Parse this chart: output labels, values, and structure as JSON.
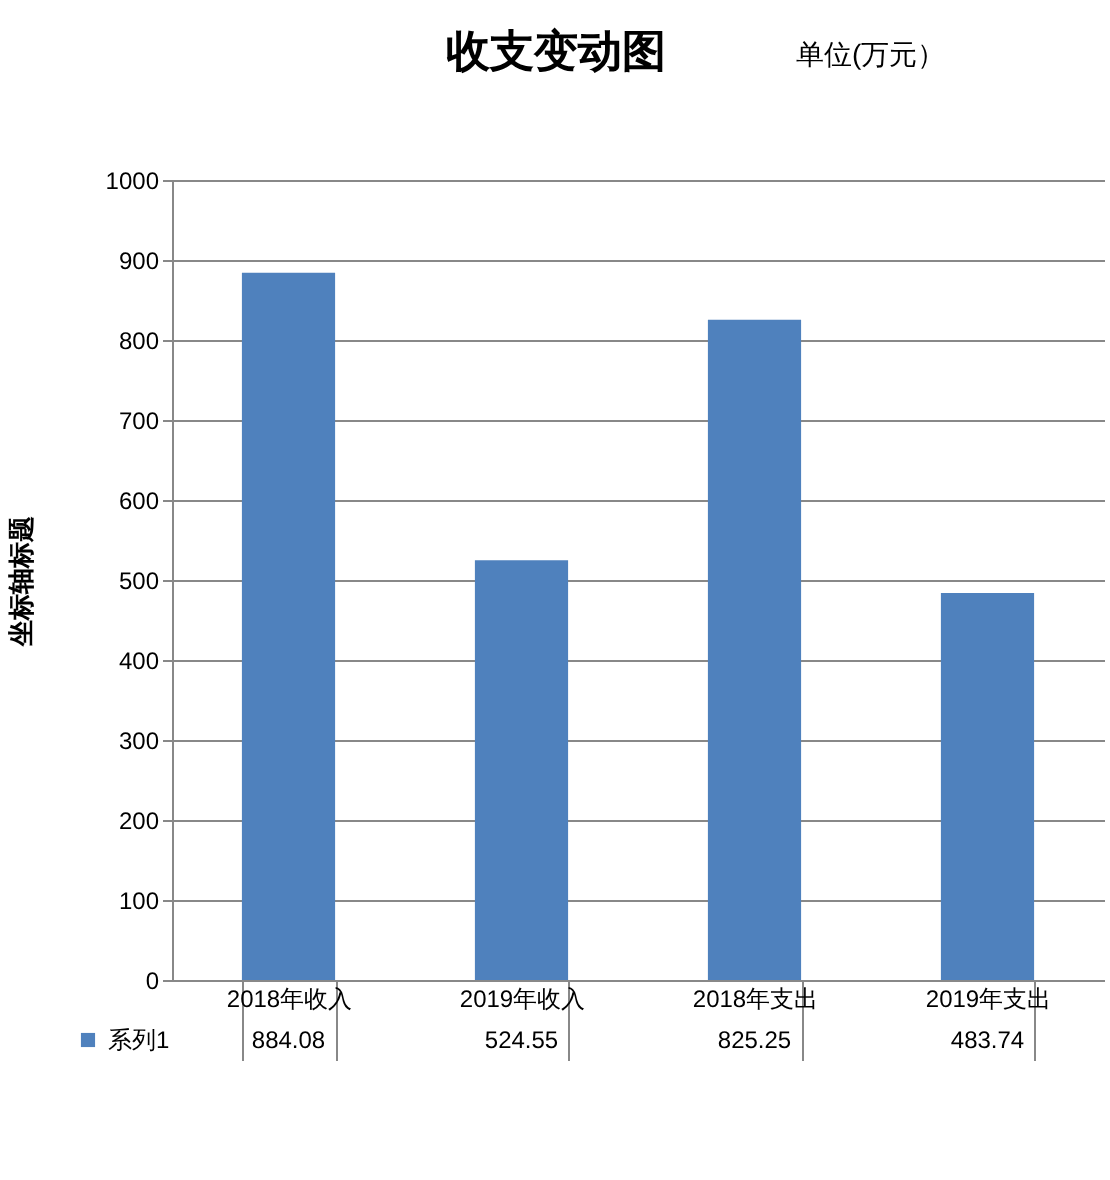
{
  "chart_data": {
    "type": "bar",
    "title": "收支变动图",
    "subtitle": "单位(万元）",
    "ylabel": "坐标轴标题",
    "categories": [
      "2018年收入",
      "2019年收入",
      "2018年支出",
      "2019年支出"
    ],
    "series": [
      {
        "name": "系列1",
        "color": "#4f81bd",
        "values": [
          884.08,
          524.55,
          825.25,
          483.74
        ]
      }
    ],
    "ylim": [
      0,
      1000
    ],
    "yticks": [
      0,
      100,
      200,
      300,
      400,
      500,
      600,
      700,
      800,
      900,
      1000
    ],
    "grid": "y",
    "legend": "bottom left",
    "data_labels": true
  }
}
